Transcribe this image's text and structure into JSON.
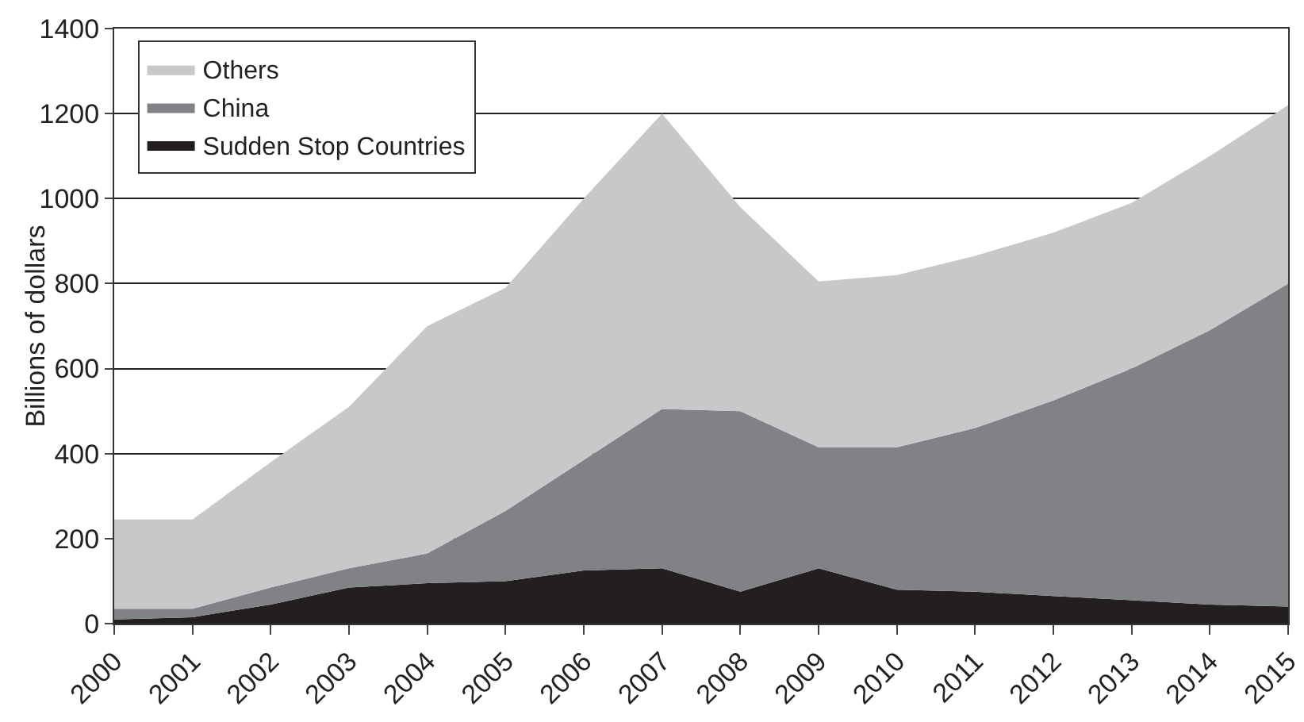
{
  "chart_data": {
    "type": "area",
    "stacked": true,
    "ylabel": "Billions of dollars",
    "categories": [
      "2000",
      "2001",
      "2002",
      "2003",
      "2004",
      "2005",
      "2006",
      "2007",
      "2008",
      "2009",
      "2010",
      "2011",
      "2012",
      "2013",
      "2014",
      "2015"
    ],
    "series": [
      {
        "name": "Sudden Stop Countries",
        "color": "#231f20",
        "values": [
          10,
          15,
          45,
          85,
          95,
          100,
          125,
          130,
          75,
          130,
          80,
          75,
          65,
          55,
          45,
          40
        ]
      },
      {
        "name": "China",
        "color": "#818285",
        "values": [
          25,
          20,
          40,
          45,
          70,
          165,
          260,
          375,
          425,
          285,
          335,
          385,
          460,
          545,
          645,
          760
        ]
      },
      {
        "name": "Others",
        "color": "#c7c8ca",
        "values": [
          210,
          210,
          295,
          380,
          535,
          525,
          615,
          695,
          480,
          390,
          405,
          405,
          395,
          390,
          410,
          420
        ]
      }
    ],
    "ylim": [
      0,
      1400
    ],
    "yticks": [
      0,
      200,
      400,
      600,
      800,
      1000,
      1200,
      1400
    ],
    "grid": "y",
    "legend": "top left"
  }
}
